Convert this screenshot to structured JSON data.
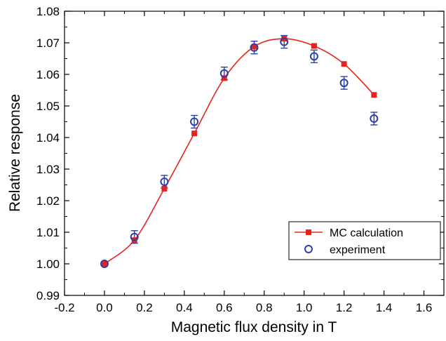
{
  "chart_data": {
    "type": "scatter",
    "title": "",
    "xlabel": "Magnetic flux density in T",
    "ylabel": "Relative response",
    "xlim": [
      -0.2,
      1.7
    ],
    "ylim": [
      0.99,
      1.08
    ],
    "xticks": [
      "-0.2",
      "0.0",
      "0.2",
      "0.4",
      "0.6",
      "0.8",
      "1.0",
      "1.2",
      "1.4",
      "1.6"
    ],
    "xtick_values": [
      -0.2,
      0.0,
      0.2,
      0.4,
      0.6,
      0.8,
      1.0,
      1.2,
      1.4,
      1.6
    ],
    "yticks": [
      "0.99",
      "1.00",
      "1.01",
      "1.02",
      "1.03",
      "1.04",
      "1.05",
      "1.06",
      "1.07",
      "1.08"
    ],
    "ytick_values": [
      0.99,
      1.0,
      1.01,
      1.02,
      1.03,
      1.04,
      1.05,
      1.06,
      1.07,
      1.08
    ],
    "grid": false,
    "legend_position": "bottom-right",
    "series": [
      {
        "name": "MC calculation",
        "marker": "filled-square",
        "line": "smooth",
        "color": "#e8231e",
        "x": [
          0.0,
          0.15,
          0.3,
          0.45,
          0.6,
          0.75,
          0.9,
          1.05,
          1.2,
          1.35
        ],
        "y": [
          1.0,
          1.0075,
          1.0238,
          1.0413,
          1.0588,
          1.0688,
          1.0713,
          1.069,
          1.0633,
          1.0535
        ]
      },
      {
        "name": "experiment",
        "marker": "open-circle",
        "line": "none",
        "color": "#2b3fa6",
        "x": [
          0.0,
          0.15,
          0.3,
          0.45,
          0.6,
          0.75,
          0.9,
          1.05,
          1.2,
          1.35
        ],
        "y": [
          1.0,
          1.0085,
          1.026,
          1.045,
          1.0603,
          1.0685,
          1.0703,
          1.0657,
          1.0573,
          1.046
        ],
        "error": [
          0.0,
          0.002,
          0.002,
          0.002,
          0.002,
          0.002,
          0.002,
          0.002,
          0.002,
          0.002
        ]
      }
    ]
  }
}
